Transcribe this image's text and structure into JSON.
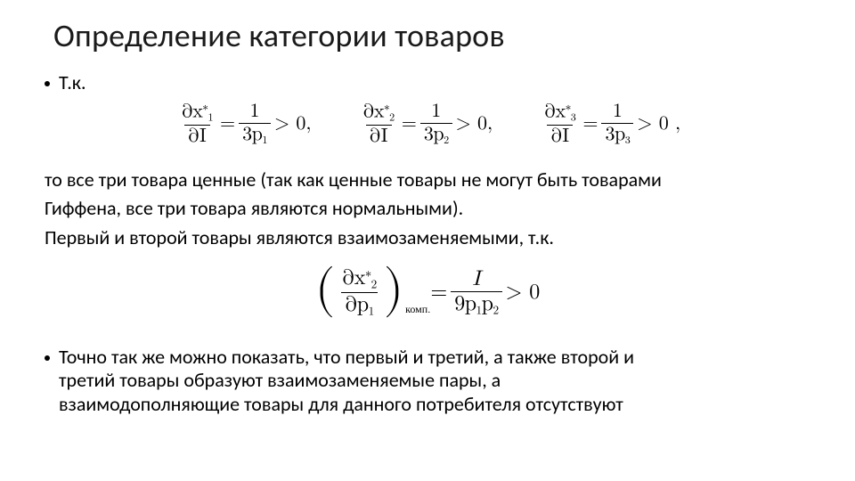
{
  "title": "Определение категории товаров",
  "bullet1": "Т.к.",
  "eq_row": {
    "terms": [
      {
        "num_var": "x",
        "num_sub": "1",
        "den_var": "p",
        "den_sub": "1"
      },
      {
        "num_var": "x",
        "num_sub": "2",
        "den_var": "p",
        "den_sub": "2"
      },
      {
        "num_var": "x",
        "num_sub": "3",
        "den_var": "p",
        "den_sub": "3"
      }
    ],
    "partial": "∂",
    "sup": "∗",
    "dI": "∂I",
    "rhs_num": "1",
    "rhs_den_pref": "3",
    "gt": "> 0",
    "sep": ","
  },
  "para1_l1": "то все три товара ценные (так как ценные товары не могут быть товарами",
  "para1_l2": "Гиффена, все три товара являются нормальными).",
  "para1_l3": "Первый и второй товары являются взаимозаменяемыми, т.к.",
  "eq_block": {
    "lp_num_d": "∂",
    "lp_num_var": "x",
    "lp_num_sub": "2",
    "lp_num_sup": "∗",
    "lp_den_d": "∂",
    "lp_den_var": "p",
    "lp_den_sub": "1",
    "komp": "комп.",
    "eq": " = ",
    "rhs_num": "I",
    "rhs_den_a": "9",
    "rhs_den_p1v": "p",
    "rhs_den_p1s": "1",
    "rhs_den_p2v": "p",
    "rhs_den_p2s": "2",
    "gt": " > 0"
  },
  "bullet2_l1": "Точно так же можно показать, что первый и третий, а также второй и",
  "bullet2_l2": "третий товары образуют взаимозаменяемые пары, а",
  "bullet2_l3": "взаимодополняющие товары для данного потребителя отсутствуют",
  "colors": {
    "text": "#000000",
    "bg": "#ffffff"
  }
}
